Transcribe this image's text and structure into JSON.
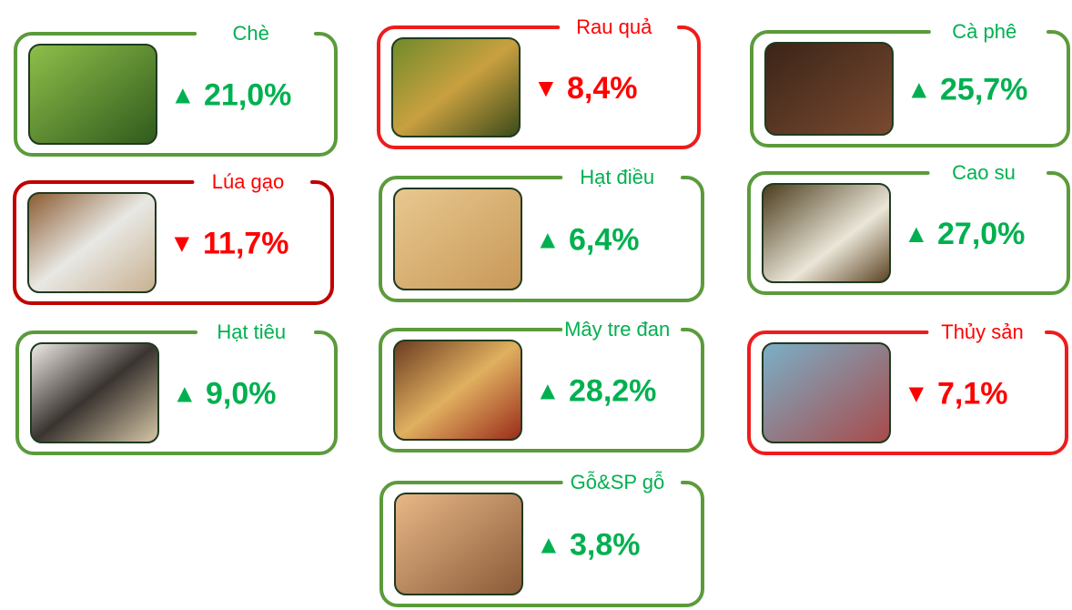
{
  "cards": [
    {
      "label": "Chè",
      "arrow": "▲",
      "value": "21,0%",
      "color": "#00b050",
      "border": "#5b9b3b"
    },
    {
      "label": "Rau quả",
      "arrow": "▼",
      "value": "8,4%",
      "color": "#ff0000",
      "border": "#ee1c1c"
    },
    {
      "label": "Cà phê",
      "arrow": "▲",
      "value": "25,7%",
      "color": "#00b050",
      "border": "#5b9b3b"
    },
    {
      "label": "Lúa gạo",
      "arrow": "▼",
      "value": "11,7%",
      "color": "#ff0000",
      "border": "#c00000"
    },
    {
      "label": "Hạt điều",
      "arrow": "▲",
      "value": "6,4%",
      "color": "#00b050",
      "border": "#5b9b3b"
    },
    {
      "label": "Cao su",
      "arrow": "▲",
      "value": "27,0%",
      "color": "#00b050",
      "border": "#5b9b3b"
    },
    {
      "label": "Hạt tiêu",
      "arrow": "▲",
      "value": "9,0%",
      "color": "#00b050",
      "border": "#5b9b3b"
    },
    {
      "label": "Mây tre đan",
      "arrow": "▲",
      "value": "28,2%",
      "color": "#00b050",
      "border": "#5b9b3b"
    },
    {
      "label": "Thủy sản",
      "arrow": "▼",
      "value": "7,1%",
      "color": "#ff0000",
      "border": "#ee1c1c"
    },
    {
      "label": "Gỗ&SP gỗ",
      "arrow": "▲",
      "value": "3,8%",
      "color": "#00b050",
      "border": "#5b9b3b"
    }
  ]
}
